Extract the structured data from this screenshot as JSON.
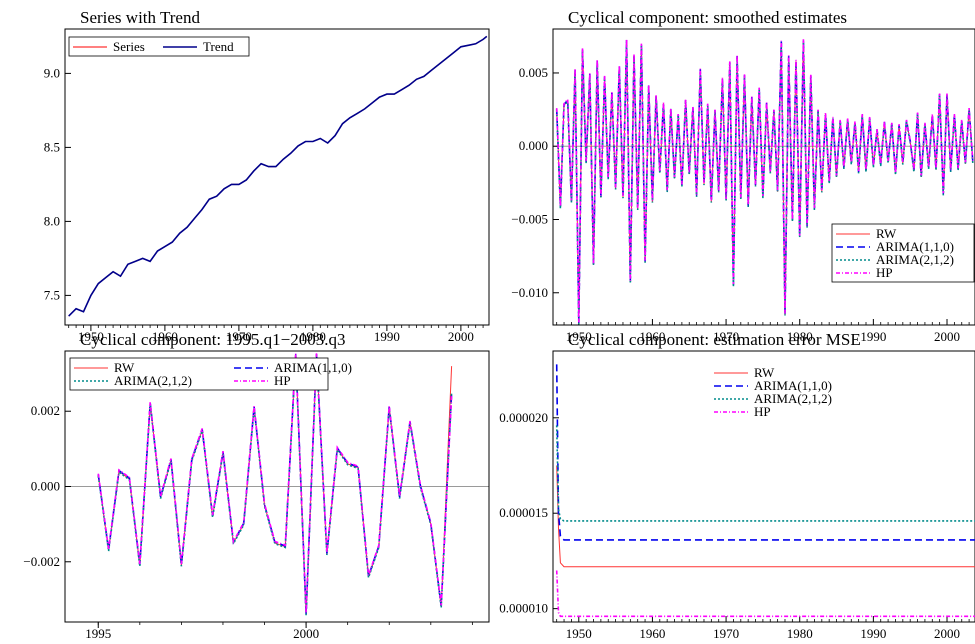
{
  "colors": {
    "series": "#ff0000",
    "trend": "#00008b",
    "rw": "#ff3333",
    "arima110": "#0000ee",
    "arima212": "#008b8b",
    "hp": "#ff00ff",
    "zero_line": "#9a9a9a"
  },
  "chart_data": [
    {
      "id": "p1",
      "type": "line",
      "title": "Series with Trend",
      "xlim": [
        1946.5,
        2003.8
      ],
      "ylim": [
        7.3,
        9.3
      ],
      "xticks": [
        1950,
        1960,
        1970,
        1980,
        1990,
        2000
      ],
      "yticks": [
        7.5,
        8.0,
        8.5,
        9.0
      ],
      "ytick_labels": [
        "7.5",
        "8.0",
        "8.5",
        "9.0"
      ],
      "legend": {
        "position": "top-left",
        "columns": 2
      },
      "series": [
        {
          "name": "Series",
          "color_key": "series",
          "dash": "",
          "x": [
            1947,
            1948,
            1949,
            1950,
            1951,
            1952,
            1953,
            1954,
            1955,
            1956,
            1957,
            1958,
            1959,
            1960,
            1961,
            1962,
            1963,
            1964,
            1965,
            1966,
            1967,
            1968,
            1969,
            1970,
            1971,
            1972,
            1973,
            1974,
            1975,
            1976,
            1977,
            1978,
            1979,
            1980,
            1981,
            1982,
            1983,
            1984,
            1985,
            1986,
            1987,
            1988,
            1989,
            1990,
            1991,
            1992,
            1993,
            1994,
            1995,
            1996,
            1997,
            1998,
            1999,
            2000,
            2001,
            2002,
            2003,
            2003.5
          ],
          "y": [
            7.36,
            7.41,
            7.39,
            7.5,
            7.58,
            7.62,
            7.66,
            7.63,
            7.71,
            7.73,
            7.75,
            7.73,
            7.8,
            7.83,
            7.86,
            7.92,
            7.96,
            8.02,
            8.08,
            8.15,
            8.17,
            8.22,
            8.25,
            8.25,
            8.28,
            8.34,
            8.39,
            8.37,
            8.37,
            8.42,
            8.46,
            8.51,
            8.54,
            8.54,
            8.56,
            8.53,
            8.58,
            8.66,
            8.7,
            8.73,
            8.76,
            8.8,
            8.84,
            8.86,
            8.86,
            8.89,
            8.92,
            8.96,
            8.98,
            9.02,
            9.06,
            9.1,
            9.14,
            9.18,
            9.19,
            9.2,
            9.23,
            9.25
          ]
        },
        {
          "name": "Trend",
          "color_key": "trend",
          "dash": "",
          "x": [
            1947,
            1948,
            1949,
            1950,
            1951,
            1952,
            1953,
            1954,
            1955,
            1956,
            1957,
            1958,
            1959,
            1960,
            1961,
            1962,
            1963,
            1964,
            1965,
            1966,
            1967,
            1968,
            1969,
            1970,
            1971,
            1972,
            1973,
            1974,
            1975,
            1976,
            1977,
            1978,
            1979,
            1980,
            1981,
            1982,
            1983,
            1984,
            1985,
            1986,
            1987,
            1988,
            1989,
            1990,
            1991,
            1992,
            1993,
            1994,
            1995,
            1996,
            1997,
            1998,
            1999,
            2000,
            2001,
            2002,
            2003,
            2003.5
          ],
          "y": [
            7.36,
            7.41,
            7.39,
            7.5,
            7.58,
            7.62,
            7.66,
            7.63,
            7.71,
            7.73,
            7.75,
            7.73,
            7.8,
            7.83,
            7.86,
            7.92,
            7.96,
            8.02,
            8.08,
            8.15,
            8.17,
            8.22,
            8.25,
            8.25,
            8.28,
            8.34,
            8.39,
            8.37,
            8.37,
            8.42,
            8.46,
            8.51,
            8.54,
            8.54,
            8.56,
            8.53,
            8.58,
            8.66,
            8.7,
            8.73,
            8.76,
            8.8,
            8.84,
            8.86,
            8.86,
            8.89,
            8.92,
            8.96,
            8.98,
            9.02,
            9.06,
            9.1,
            9.14,
            9.18,
            9.19,
            9.2,
            9.23,
            9.25
          ]
        }
      ]
    },
    {
      "id": "p2",
      "type": "line",
      "title": "Cyclical component: smoothed estimates",
      "xlim": [
        1946.5,
        2003.8
      ],
      "ylim": [
        -0.0122,
        0.008
      ],
      "zero_line": true,
      "xticks": [
        1950,
        1960,
        1970,
        1980,
        1990,
        2000
      ],
      "yticks": [
        -0.01,
        -0.005,
        0.0,
        0.005
      ],
      "ytick_labels": [
        "−0.010",
        "−0.005",
        "0.000",
        "0.005"
      ],
      "legend": {
        "position": "bottom-right",
        "columns": 1
      },
      "x": [
        1947.0,
        1947.5,
        1948.0,
        1948.5,
        1949.0,
        1949.5,
        1950.0,
        1950.5,
        1951.0,
        1951.5,
        1952.0,
        1952.5,
        1953.0,
        1953.5,
        1954.0,
        1954.5,
        1955.0,
        1955.5,
        1956.0,
        1956.5,
        1957.0,
        1957.5,
        1958.0,
        1958.5,
        1959.0,
        1959.5,
        1960.0,
        1960.5,
        1961.0,
        1961.5,
        1962.0,
        1962.5,
        1963.0,
        1963.5,
        1964.0,
        1964.5,
        1965.0,
        1965.5,
        1966.0,
        1966.5,
        1967.0,
        1967.5,
        1968.0,
        1968.5,
        1969.0,
        1969.5,
        1970.0,
        1970.5,
        1971.0,
        1971.5,
        1972.0,
        1972.5,
        1973.0,
        1973.5,
        1974.0,
        1974.5,
        1975.0,
        1975.5,
        1976.0,
        1976.5,
        1977.0,
        1977.5,
        1978.0,
        1978.5,
        1979.0,
        1979.5,
        1980.0,
        1980.5,
        1981.0,
        1981.5,
        1982.0,
        1982.5,
        1983.0,
        1983.5,
        1984.0,
        1984.5,
        1985.0,
        1985.5,
        1986.0,
        1986.5,
        1987.0,
        1987.5,
        1988.0,
        1988.5,
        1989.0,
        1989.5,
        1990.0,
        1990.5,
        1991.0,
        1991.5,
        1992.0,
        1992.5,
        1993.0,
        1993.5,
        1994.0,
        1994.5,
        1995.0,
        1995.5,
        1996.0,
        1996.5,
        1997.0,
        1997.5,
        1998.0,
        1998.5,
        1999.0,
        1999.5,
        2000.0,
        2000.5,
        2001.0,
        2001.5,
        2002.0,
        2002.5,
        2003.0,
        2003.5
      ],
      "y": [
        0.0025,
        -0.0042,
        0.0028,
        0.0031,
        -0.0038,
        0.0052,
        -0.0121,
        0.0066,
        -0.0011,
        0.0049,
        -0.0081,
        0.0058,
        -0.0035,
        0.0047,
        -0.0022,
        0.0036,
        -0.0029,
        0.0054,
        -0.0035,
        0.0072,
        -0.0093,
        0.0062,
        -0.0043,
        0.0069,
        -0.0079,
        0.0041,
        -0.0038,
        0.0034,
        -0.0018,
        0.0029,
        -0.0031,
        0.0025,
        -0.0022,
        0.0021,
        -0.0027,
        0.0031,
        -0.0019,
        0.0026,
        -0.0034,
        0.0052,
        -0.0026,
        0.0028,
        -0.0038,
        0.0024,
        -0.0031,
        0.0046,
        -0.0037,
        0.0057,
        -0.0095,
        0.0061,
        -0.0036,
        0.0048,
        -0.0041,
        0.0033,
        -0.0027,
        0.0039,
        -0.0035,
        0.0029,
        -0.0018,
        0.0024,
        -0.0031,
        0.0071,
        -0.0115,
        0.0061,
        -0.0051,
        0.0058,
        -0.0062,
        0.0072,
        -0.0055,
        0.0048,
        -0.0043,
        0.0024,
        -0.0031,
        0.0022,
        -0.0025,
        0.0019,
        -0.0021,
        0.0017,
        -0.0015,
        0.0018,
        -0.0012,
        0.0016,
        -0.0018,
        0.0021,
        -0.0017,
        0.0019,
        -0.0014,
        0.0011,
        -0.0013,
        0.0016,
        -0.0011,
        0.0015,
        -0.0019,
        0.0014,
        -0.0012,
        0.0017,
        0.0003,
        -0.0017,
        0.0022,
        -0.0021,
        0.0015,
        -0.0015,
        0.0021,
        -0.0016,
        0.0035,
        -0.0033,
        0.0035,
        -0.0017,
        0.0021,
        -0.0016,
        0.0017,
        -0.0012,
        0.0025,
        -0.0011
      ],
      "series": [
        {
          "name": "RW",
          "color_key": "rw",
          "dash": "",
          "offset": 0.0
        },
        {
          "name": "ARIMA(1,1,0)",
          "color_key": "arima110",
          "dash": "7,4",
          "offset": 5e-05
        },
        {
          "name": "ARIMA(2,1,2)",
          "color_key": "arima212",
          "dash": "2,2",
          "offset": -5e-05
        },
        {
          "name": "HP",
          "color_key": "hp",
          "dash": "4,2,1,2",
          "offset": 0.0001
        }
      ]
    },
    {
      "id": "p3",
      "type": "line",
      "title": "Cyclical component:  1995.q1−2003.q3",
      "xlim": [
        1994.2,
        2004.4
      ],
      "ylim": [
        -0.0036,
        0.0036
      ],
      "zero_line": true,
      "xticks": [
        1995,
        2000
      ],
      "yticks": [
        -0.002,
        0.0,
        0.002
      ],
      "ytick_labels": [
        "−0.002",
        "0.000",
        "0.002"
      ],
      "legend": {
        "position": "top-left",
        "columns": 2
      },
      "x": [
        1995.0,
        1995.25,
        1995.5,
        1995.75,
        1996.0,
        1996.25,
        1996.5,
        1996.75,
        1997.0,
        1997.25,
        1997.5,
        1997.75,
        1998.0,
        1998.25,
        1998.5,
        1998.75,
        1999.0,
        1999.25,
        1999.5,
        1999.75,
        2000.0,
        2000.25,
        2000.5,
        2000.75,
        2001.0,
        2001.25,
        2001.5,
        2001.75,
        2002.0,
        2002.25,
        2002.5,
        2002.75,
        2003.0,
        2003.25,
        2003.5
      ],
      "y": [
        0.0003,
        -0.0017,
        0.0004,
        0.0002,
        -0.0021,
        0.0022,
        -0.0003,
        0.0007,
        -0.0021,
        0.0007,
        0.0015,
        -0.0008,
        0.0009,
        -0.0015,
        -0.001,
        0.0021,
        -0.0005,
        -0.0015,
        -0.0016,
        0.0035,
        -0.0034,
        0.0035,
        -0.0018,
        0.001,
        0.0006,
        0.0005,
        -0.0024,
        -0.0016,
        0.0021,
        -0.0003,
        0.0017,
        0.0,
        -0.001,
        -0.0032,
        0.0025
      ],
      "series": [
        {
          "name": "RW",
          "color_key": "rw",
          "dash": "",
          "offset": 0.0,
          "last": 0.0032
        },
        {
          "name": "ARIMA(1,1,0)",
          "color_key": "arima110",
          "dash": "7,4",
          "offset": 2e-05,
          "last": 0.0025
        },
        {
          "name": "ARIMA(2,1,2)",
          "color_key": "arima212",
          "dash": "2,2",
          "offset": -2e-05,
          "last": 0.0025
        },
        {
          "name": "HP",
          "color_key": "hp",
          "dash": "4,2,1,2",
          "offset": 4e-05,
          "last": 0.0024
        }
      ]
    },
    {
      "id": "p4",
      "type": "line",
      "title": "Cyclical component: estimation error MSE",
      "xlim": [
        1946.5,
        2003.8
      ],
      "ylim": [
        9.3e-06,
        2.35e-05
      ],
      "xticks": [
        1950,
        1960,
        1970,
        1980,
        1990,
        2000
      ],
      "yticks": [
        1e-05,
        1.5e-05,
        2e-05
      ],
      "ytick_labels": [
        "0.000010",
        "0.000015",
        "0.000020"
      ],
      "legend": {
        "position": "top-center",
        "columns": 1
      },
      "series": [
        {
          "name": "RW",
          "color_key": "rw",
          "dash": "",
          "x": [
            1947.0,
            1947.25,
            1947.5,
            1948.0,
            2003.8
          ],
          "y": [
            1.75e-05,
            1.42e-05,
            1.24e-05,
            1.22e-05,
            1.22e-05
          ]
        },
        {
          "name": "ARIMA(1,1,0)",
          "color_key": "arima110",
          "dash": "7,4",
          "x": [
            1947.0,
            1947.25,
            1947.5,
            1948.0,
            2003.8
          ],
          "y": [
            2.28e-05,
            1.5e-05,
            1.38e-05,
            1.36e-05,
            1.36e-05
          ]
        },
        {
          "name": "ARIMA(2,1,2)",
          "color_key": "arima212",
          "dash": "2,2",
          "x": [
            1947.0,
            1947.25,
            1947.5,
            1948.0,
            2003.8
          ],
          "y": [
            1.96e-05,
            1.52e-05,
            1.47e-05,
            1.46e-05,
            1.46e-05
          ]
        },
        {
          "name": "HP",
          "color_key": "hp",
          "dash": "4,2,1,2",
          "x": [
            1947.0,
            1947.25,
            1947.5,
            1948.0,
            2003.8
          ],
          "y": [
            1.2e-05,
            9.8e-06,
            9.6e-06,
            9.6e-06,
            9.6e-06
          ]
        }
      ]
    }
  ]
}
